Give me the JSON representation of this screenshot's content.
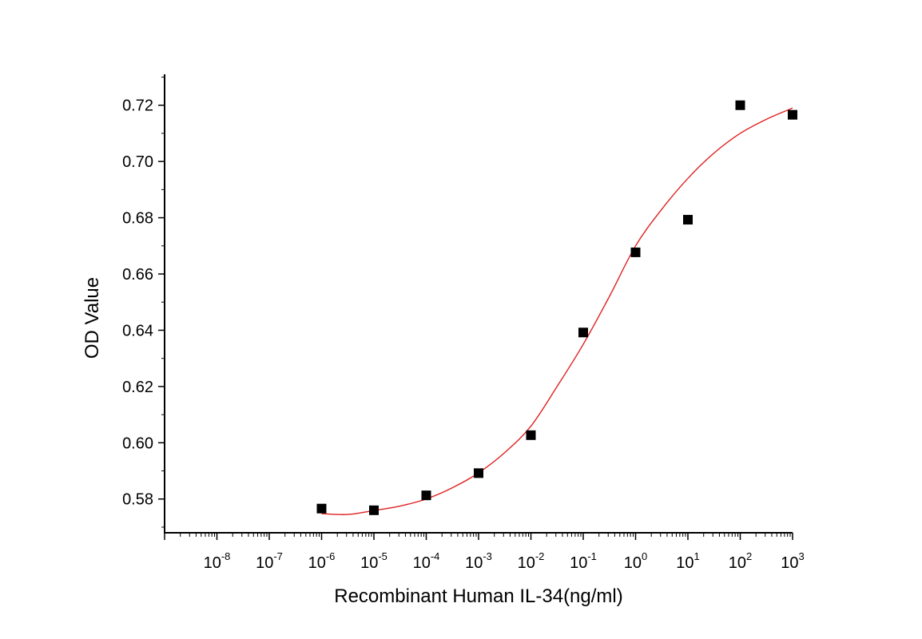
{
  "chart_data": {
    "type": "scatter",
    "title": "",
    "xlabel": "Recombinant Human IL-34(ng/ml)",
    "ylabel": "OD Value",
    "x_scale": "log10",
    "xlim": [
      1e-09,
      1000
    ],
    "ylim": [
      0.568,
      0.731
    ],
    "y_ticks": [
      0.58,
      0.6,
      0.62,
      0.64,
      0.66,
      0.68,
      0.7,
      0.72
    ],
    "y_tick_labels": [
      "0.58",
      "0.60",
      "0.62",
      "0.64",
      "0.66",
      "0.68",
      "0.70",
      "0.72"
    ],
    "x_ticks": [
      1e-08,
      1e-07,
      1e-06,
      1e-05,
      0.0001,
      0.001,
      0.01,
      0.1,
      1,
      10,
      100,
      1000
    ],
    "x_tick_labels": [
      {
        "base": "10",
        "exp": "-8"
      },
      {
        "base": "10",
        "exp": "-7"
      },
      {
        "base": "10",
        "exp": "-6"
      },
      {
        "base": "10",
        "exp": "-5"
      },
      {
        "base": "10",
        "exp": "-4"
      },
      {
        "base": "10",
        "exp": "-3"
      },
      {
        "base": "10",
        "exp": "-2"
      },
      {
        "base": "10",
        "exp": "-1"
      },
      {
        "base": "10",
        "exp": "0"
      },
      {
        "base": "10",
        "exp": "1"
      },
      {
        "base": "10",
        "exp": "2"
      },
      {
        "base": "10",
        "exp": "3"
      }
    ],
    "grid": false,
    "legend": "none",
    "series": [
      {
        "type": "scatter",
        "marker": "square",
        "color": "#000000",
        "x": [
          1e-06,
          1e-05,
          0.0001,
          0.001,
          0.01,
          0.1,
          1,
          10,
          100,
          1000
        ],
        "y": [
          0.5766,
          0.576,
          0.5813,
          0.5892,
          0.6027,
          0.6392,
          0.6677,
          0.6793,
          0.72,
          0.7166
        ]
      },
      {
        "type": "line",
        "color": "#e02020",
        "x": [
          1e-06,
          3.16e-06,
          1e-05,
          3.16e-05,
          0.0001,
          0.000316,
          0.001,
          0.00316,
          0.01,
          0.0316,
          0.1,
          0.316,
          1,
          3.16,
          10,
          31.6,
          100,
          316,
          1000
        ],
        "y": [
          0.5748,
          0.5745,
          0.5759,
          0.5775,
          0.58,
          0.584,
          0.5893,
          0.5965,
          0.6059,
          0.62,
          0.635,
          0.652,
          0.67,
          0.683,
          0.694,
          0.703,
          0.71,
          0.715,
          0.719
        ]
      }
    ]
  }
}
